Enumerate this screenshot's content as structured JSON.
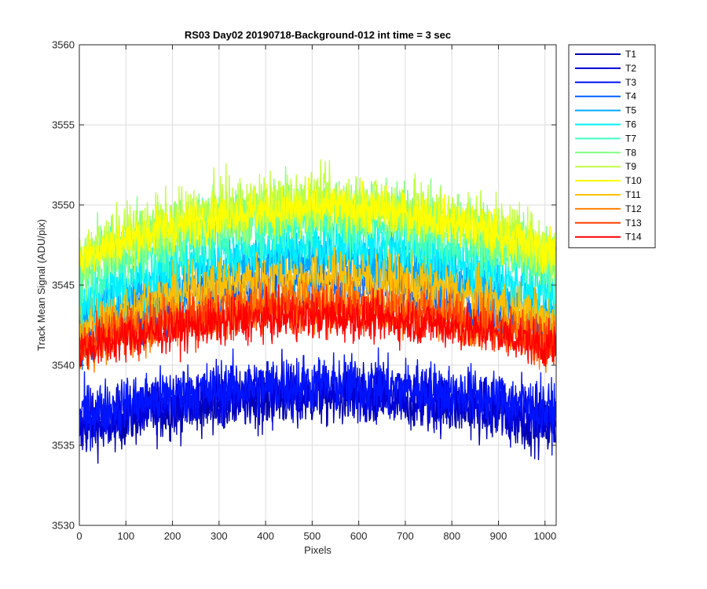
{
  "chart_data": {
    "type": "line",
    "title": "RS03 Day02 20190718-Background-012 int time = 3 sec",
    "xlabel": "Pixels",
    "ylabel": "Track Mean Signal (ADU/pix)",
    "xlim": [
      0,
      1024
    ],
    "ylim": [
      3530,
      3560
    ],
    "xticks": [
      0,
      100,
      200,
      300,
      400,
      500,
      600,
      700,
      800,
      900,
      1000
    ],
    "yticks": [
      3530,
      3535,
      3540,
      3545,
      3550,
      3555,
      3560
    ],
    "grid": true,
    "legend_position": "outside-top-right",
    "points_per_series": 1024,
    "profile_note": "Each track is a noisy arch-shaped profile: low at the edges, peaking near pixel ~520.",
    "series": [
      {
        "name": "T1",
        "color": "#0000aa",
        "edge": 3535.8,
        "center": 3538.0,
        "noise": 1.3
      },
      {
        "name": "T2",
        "color": "#0000d9",
        "edge": 3536.2,
        "center": 3538.4,
        "noise": 1.3
      },
      {
        "name": "T3",
        "color": "#0015ff",
        "edge": 3536.8,
        "center": 3538.8,
        "noise": 1.3
      },
      {
        "name": "T4",
        "color": "#0060ff",
        "edge": 3541.5,
        "center": 3545.2,
        "noise": 1.3
      },
      {
        "name": "T5",
        "color": "#00a8ff",
        "edge": 3542.5,
        "center": 3546.5,
        "noise": 1.3
      },
      {
        "name": "T6",
        "color": "#00f0ff",
        "edge": 3543.5,
        "center": 3547.5,
        "noise": 1.3
      },
      {
        "name": "T7",
        "color": "#40ffc0",
        "edge": 3545.0,
        "center": 3549.0,
        "noise": 1.4
      },
      {
        "name": "T8",
        "color": "#80ff80",
        "edge": 3546.0,
        "center": 3549.8,
        "noise": 1.4
      },
      {
        "name": "T9",
        "color": "#c0ff40",
        "edge": 3546.5,
        "center": 3550.2,
        "noise": 1.4
      },
      {
        "name": "T10",
        "color": "#ffff00",
        "edge": 3546.5,
        "center": 3549.8,
        "noise": 1.0
      },
      {
        "name": "T11",
        "color": "#ffbf00",
        "edge": 3542.0,
        "center": 3545.5,
        "noise": 1.2
      },
      {
        "name": "T12",
        "color": "#ff8000",
        "edge": 3541.0,
        "center": 3544.0,
        "noise": 1.2
      },
      {
        "name": "T13",
        "color": "#ff4000",
        "edge": 3541.0,
        "center": 3543.5,
        "noise": 1.1
      },
      {
        "name": "T14",
        "color": "#ff0000",
        "edge": 3540.8,
        "center": 3543.0,
        "noise": 1.0
      }
    ]
  }
}
